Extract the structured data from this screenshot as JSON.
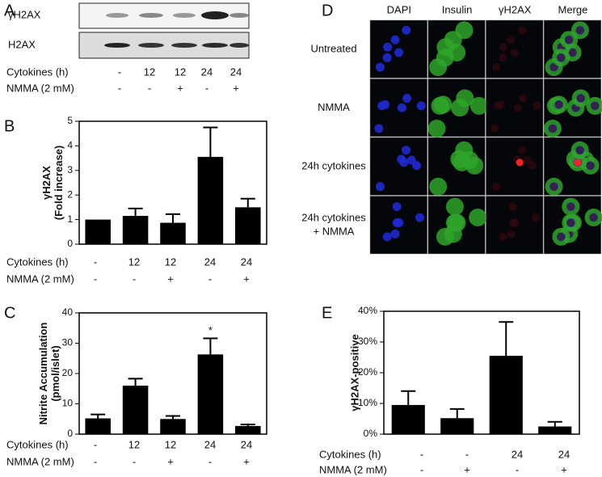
{
  "panels": {
    "a": "A",
    "b": "B",
    "c": "C",
    "d": "D",
    "e": "E"
  },
  "blot": {
    "bands": [
      "γH2AX",
      "H2AX"
    ],
    "rows": [
      {
        "label": "Cytokines (h)",
        "values": [
          "-",
          "12",
          "12",
          "24",
          "24"
        ]
      },
      {
        "label": "NMMA (2 mM)",
        "values": [
          "-",
          "-",
          "+",
          "-",
          "+"
        ]
      }
    ]
  },
  "microscopy": {
    "columns": [
      "DAPI",
      "Insulin",
      "γH2AX",
      "Merge"
    ],
    "rows": [
      [
        "Untreated"
      ],
      [
        "NMMA"
      ],
      [
        "24h cytokines"
      ],
      [
        "24h cytokines",
        "+ NMMA"
      ]
    ]
  },
  "chart_data": [
    {
      "type": "bar",
      "ylabel": [
        "γH2AX",
        "(Fold increase)"
      ],
      "values": [
        1.0,
        1.15,
        0.87,
        3.55,
        1.5
      ],
      "errors": [
        0,
        0.3,
        0.35,
        1.2,
        0.35
      ],
      "ylim": [
        0,
        5
      ],
      "yticks": [
        0,
        1,
        2,
        3,
        4,
        5
      ],
      "color": "#000000",
      "conditions": [
        {
          "label": "Cytokines (h)",
          "values": [
            "-",
            "12",
            "12",
            "24",
            "24"
          ]
        },
        {
          "label": "NMMA (2 mM)",
          "values": [
            "-",
            "-",
            "+",
            "-",
            "+"
          ]
        }
      ]
    },
    {
      "type": "bar",
      "ylabel": [
        "Nitrite Accumulation",
        "(pmol/islet)"
      ],
      "values": [
        5.2,
        16,
        5,
        26.3,
        2.7
      ],
      "errors": [
        1.3,
        2.3,
        1,
        5.3,
        0.5
      ],
      "ylim": [
        0,
        40
      ],
      "yticks": [
        0,
        10,
        20,
        30,
        40
      ],
      "color": "#000000",
      "annotations": [
        {
          "index": 3,
          "text": "*"
        }
      ],
      "conditions": [
        {
          "label": "Cytokines (h)",
          "values": [
            "-",
            "12",
            "12",
            "24",
            "24"
          ]
        },
        {
          "label": "NMMA (2 mM)",
          "values": [
            "-",
            "-",
            "+",
            "-",
            "+"
          ]
        }
      ]
    },
    {
      "type": "bar",
      "ylabel": [
        "γH2AX-positive"
      ],
      "values": [
        9.5,
        5.2,
        25.5,
        2.5
      ],
      "errors": [
        4.5,
        3,
        11,
        1.5
      ],
      "ylim": [
        0,
        40
      ],
      "yticks": [
        {
          "value": 0,
          "label": "0%"
        },
        {
          "value": 10,
          "label": "10%"
        },
        {
          "value": 20,
          "label": "20%"
        },
        {
          "value": 30,
          "label": "30%"
        },
        {
          "value": 40,
          "label": "40%"
        }
      ],
      "color": "#000000",
      "conditions": [
        {
          "label": "Cytokines (h)",
          "values": [
            "-",
            "-",
            "24",
            "24"
          ]
        },
        {
          "label": "NMMA (2 mM)",
          "values": [
            "-",
            "+",
            "-",
            "+"
          ]
        }
      ]
    }
  ]
}
